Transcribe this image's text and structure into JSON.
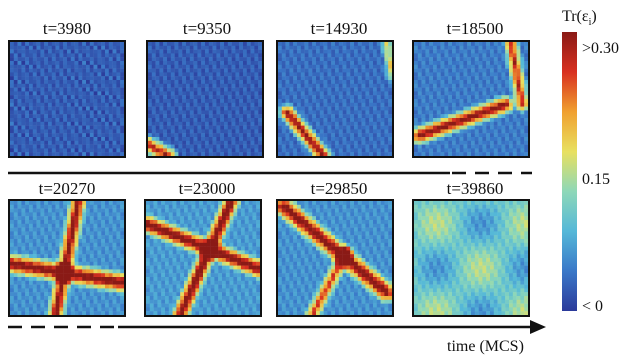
{
  "panels": [
    {
      "label": "t=3980"
    },
    {
      "label": "t=9350"
    },
    {
      "label": "t=14930"
    },
    {
      "label": "t=18500"
    },
    {
      "label": "t=20270"
    },
    {
      "label": "t=23000"
    },
    {
      "label": "t=29850"
    },
    {
      "label": "t=39860"
    }
  ],
  "colorbar": {
    "title": "Tr(ε",
    "title_sub": "i",
    "title_end": ")",
    "max_label": ">0.30",
    "mid_label": "0.15",
    "min_label": "< 0",
    "colors": [
      "#2b3a9a",
      "#3a78c8",
      "#55b8d8",
      "#8ed8b8",
      "#e8e060",
      "#f0a030",
      "#d83020",
      "#8a1a16"
    ]
  },
  "axis": {
    "label": "time (MCS)"
  }
}
